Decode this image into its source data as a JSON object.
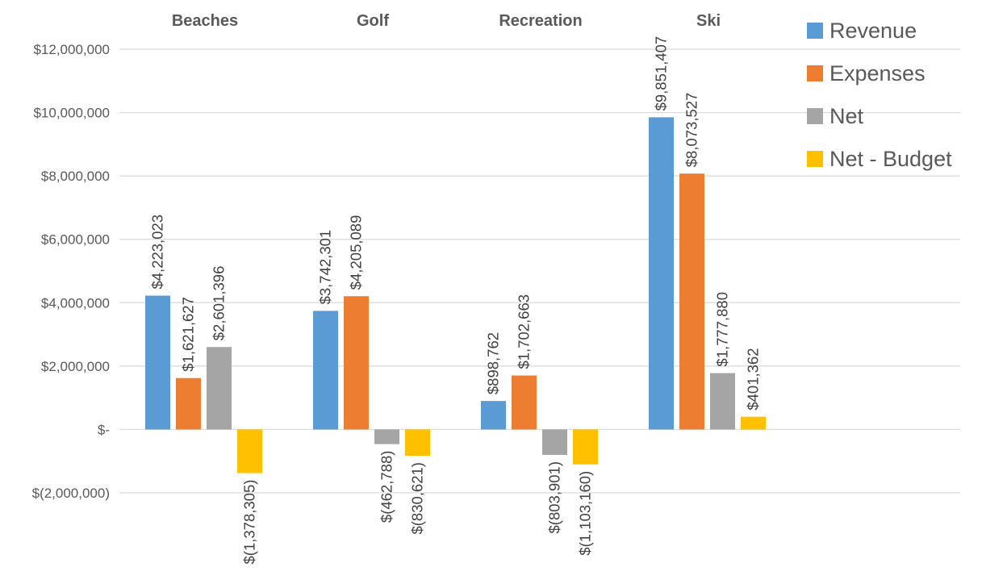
{
  "chart_data": {
    "type": "bar",
    "categories": [
      "Beaches",
      "Golf",
      "Recreation",
      "Ski"
    ],
    "series": [
      {
        "name": "Revenue",
        "color": "#5B9BD5",
        "values": [
          4223023,
          3742301,
          898762,
          9851407
        ],
        "labels": [
          "$4,223,023",
          "$3,742,301",
          "$898,762",
          "$9,851,407"
        ]
      },
      {
        "name": "Expenses",
        "color": "#ED7D31",
        "values": [
          1621627,
          4205089,
          1702663,
          8073527
        ],
        "labels": [
          "$1,621,627",
          "$4,205,089",
          "$1,702,663",
          "$8,073,527"
        ]
      },
      {
        "name": "Net",
        "color": "#A5A5A5",
        "values": [
          2601396,
          -462788,
          -803901,
          1777880
        ],
        "labels": [
          "$2,601,396",
          "$(462,788)",
          "$(803,901)",
          "$1,777,880"
        ]
      },
      {
        "name": "Net - Budget",
        "color": "#FFC000",
        "values": [
          -1378305,
          -830621,
          -1103160,
          401362
        ],
        "labels": [
          "$(1,378,305)",
          "$(830,621)",
          "$(1,103,160)",
          "$401,362"
        ]
      }
    ],
    "yticks": [
      12000000,
      10000000,
      8000000,
      6000000,
      4000000,
      2000000,
      0,
      -2000000
    ],
    "ytick_labels": [
      "$12,000,000",
      "$10,000,000",
      "$8,000,000",
      "$6,000,000",
      "$4,000,000",
      "$2,000,000",
      "$-",
      "$(2,000,000)"
    ],
    "ylim": [
      -2000000,
      12000000
    ],
    "category_labels_position": "top",
    "grid": true,
    "legend_position": "top-right"
  }
}
